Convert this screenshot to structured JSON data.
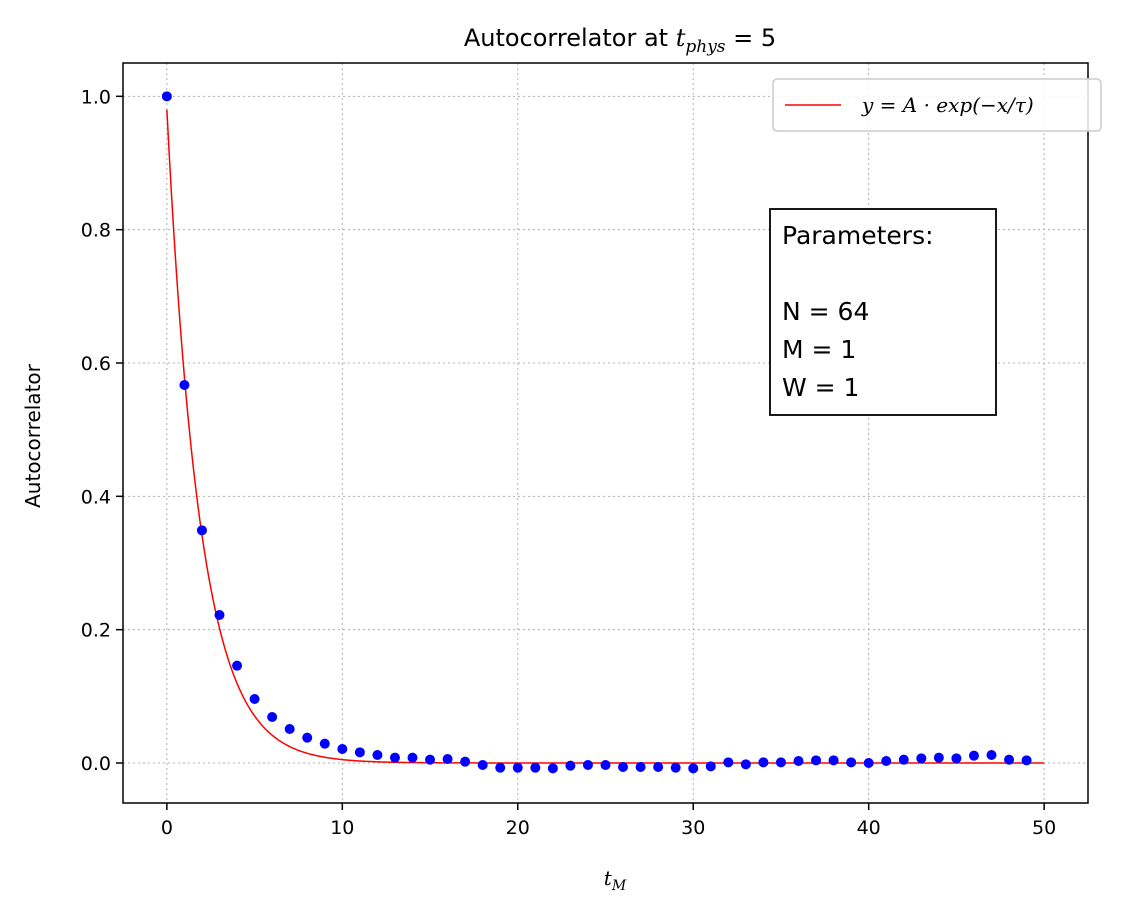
{
  "chart_data": {
    "type": "scatter",
    "title": "Autocorrelator at ",
    "title_math": {
      "base": "t",
      "sub": "phys",
      "rest": " = 5"
    },
    "xlabel": {
      "base": "t",
      "sub": "M"
    },
    "ylabel": "Autocorrelator",
    "xlim": [
      -2.5,
      52.5
    ],
    "ylim": [
      -0.06,
      1.05
    ],
    "xticks": [
      0,
      10,
      20,
      30,
      40,
      50
    ],
    "xtick_labels": [
      "0",
      "10",
      "20",
      "30",
      "40",
      "50"
    ],
    "yticks": [
      0.0,
      0.2,
      0.4,
      0.6,
      0.8,
      1.0
    ],
    "ytick_labels": [
      "0.0",
      "0.2",
      "0.4",
      "0.6",
      "0.8",
      "1.0"
    ],
    "grid": true,
    "legend": {
      "placement": "top-right",
      "entries": [
        {
          "label": "y = A · exp(−x/τ)",
          "color": "#ff0000",
          "kind": "line"
        }
      ]
    },
    "annotation": {
      "lines": [
        "Parameters:",
        "",
        "N = 64",
        "M = 1",
        "W = 1"
      ],
      "placement": "right"
    },
    "series": [
      {
        "kind": "points",
        "color": "#0000ff",
        "x": [
          0,
          1,
          2,
          3,
          4,
          5,
          6,
          7,
          8,
          9,
          10,
          11,
          12,
          13,
          14,
          15,
          16,
          17,
          18,
          19,
          20,
          21,
          22,
          23,
          24,
          25,
          26,
          27,
          28,
          29,
          30,
          31,
          32,
          33,
          34,
          35,
          36,
          37,
          38,
          39,
          40,
          41,
          42,
          43,
          44,
          45,
          46,
          47,
          48,
          49
        ],
        "y": [
          1.0,
          0.567,
          0.349,
          0.222,
          0.146,
          0.096,
          0.069,
          0.051,
          0.038,
          0.029,
          0.021,
          0.016,
          0.012,
          0.008,
          0.008,
          0.005,
          0.006,
          0.002,
          -0.003,
          -0.007,
          -0.007,
          -0.007,
          -0.008,
          -0.004,
          -0.003,
          -0.003,
          -0.006,
          -0.006,
          -0.006,
          -0.007,
          -0.008,
          -0.005,
          0.001,
          -0.002,
          0.001,
          0.001,
          0.003,
          0.004,
          0.004,
          0.001,
          0.0,
          0.003,
          0.005,
          0.007,
          0.008,
          0.007,
          0.011,
          0.012,
          0.005,
          0.004
        ]
      },
      {
        "kind": "fit",
        "color": "#ff0000",
        "A": 0.98,
        "tau": 1.9,
        "x_range": [
          0,
          50
        ]
      }
    ]
  }
}
